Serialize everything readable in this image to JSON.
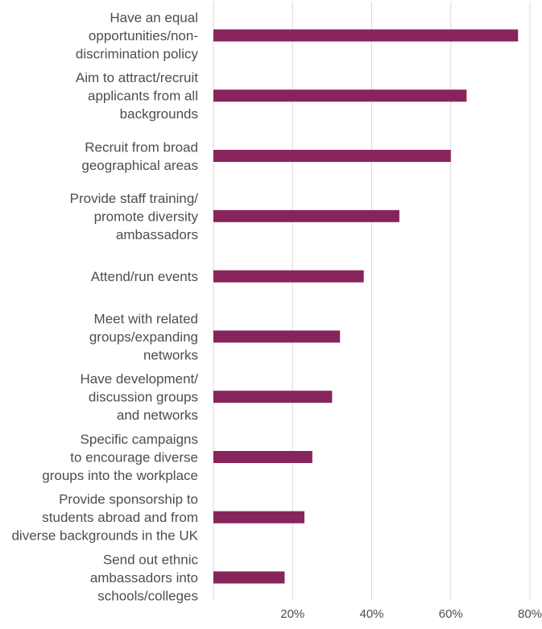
{
  "chart_data": {
    "type": "bar",
    "orientation": "horizontal",
    "categories": [
      [
        "Have an equal",
        "opportunities/non-",
        "discrimination policy"
      ],
      [
        "Aim to attract/recruit",
        "applicants from all",
        "backgrounds"
      ],
      [
        "Recruit from broad",
        "geographical areas"
      ],
      [
        "Provide staff training/",
        "promote diversity",
        "ambassadors"
      ],
      [
        "Attend/run events"
      ],
      [
        "Meet with related",
        "groups/expanding",
        "networks"
      ],
      [
        "Have development/",
        "discussion groups",
        "and networks"
      ],
      [
        "Specific campaigns",
        "to encourage diverse",
        "groups into the workplace"
      ],
      [
        "Provide sponsorship to",
        "students abroad and from",
        "diverse backgrounds in the UK"
      ],
      [
        "Send out ethnic",
        "ambassadors into",
        "schools/colleges"
      ]
    ],
    "values": [
      77,
      64,
      60,
      47,
      38,
      32,
      30,
      25,
      23,
      18
    ],
    "xlim": [
      0,
      80
    ],
    "xticks": [
      20,
      40,
      60,
      80
    ],
    "xtick_labels": [
      "20%",
      "40%",
      "60%",
      "80%"
    ],
    "grid": "vertical",
    "bar_color": "#88245c",
    "grid_color": "#d9d9d9",
    "label_color": "#4d4d4d"
  }
}
